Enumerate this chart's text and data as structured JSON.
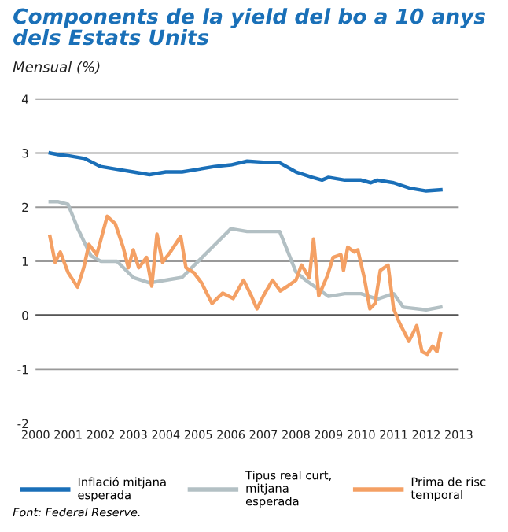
{
  "chart_data": {
    "type": "line",
    "title": "Components de la yield del bo a 10 anys\ndels Estats Units",
    "subtitle": "Mensual (%)",
    "xlim": [
      2000,
      2013
    ],
    "xticks": [
      2000,
      2001,
      2002,
      2003,
      2004,
      2005,
      2006,
      2007,
      2008,
      2009,
      2010,
      2011,
      2012,
      2013
    ],
    "ylim": [
      -2,
      4
    ],
    "yticks": [
      -2,
      -1,
      0,
      1,
      2,
      3,
      4
    ],
    "grid": "y",
    "legend": "bottom",
    "ref_lines": [
      {
        "axis": "y",
        "value": 0,
        "color": "#555555"
      }
    ],
    "annotations": [
      "Font: Federal Reserve."
    ],
    "series": [
      {
        "name": "Inflació mitjana\nesperada",
        "color": "#1a6fb8",
        "x": [
          2000.45,
          2000.7,
          2001.0,
          2001.5,
          2002.0,
          2002.5,
          2003.0,
          2003.5,
          2004.0,
          2004.5,
          2005.0,
          2005.5,
          2006.0,
          2006.5,
          2007.0,
          2007.5,
          2008.0,
          2008.5,
          2008.8,
          2009.0,
          2009.5,
          2010.0,
          2010.3,
          2010.5,
          2011.0,
          2011.5,
          2012.0,
          2012.45
        ],
        "values": [
          3.0,
          2.97,
          2.95,
          2.9,
          2.75,
          2.7,
          2.65,
          2.6,
          2.65,
          2.65,
          2.7,
          2.75,
          2.78,
          2.85,
          2.83,
          2.82,
          2.65,
          2.55,
          2.5,
          2.55,
          2.5,
          2.5,
          2.45,
          2.5,
          2.45,
          2.35,
          2.3,
          2.32
        ]
      },
      {
        "name": "Tipus real curt,\nmitjana\nesperada",
        "color": "#b3c0c4",
        "x": [
          2000.45,
          2000.7,
          2001.0,
          2001.3,
          2001.7,
          2002.0,
          2002.5,
          2003.0,
          2003.5,
          2004.0,
          2004.5,
          2005.0,
          2005.5,
          2006.0,
          2006.5,
          2007.0,
          2007.5,
          2008.0,
          2008.3,
          2009.0,
          2009.5,
          2010.0,
          2010.5,
          2011.0,
          2011.3,
          2012.0,
          2012.45
        ],
        "values": [
          2.1,
          2.1,
          2.05,
          1.6,
          1.1,
          1.0,
          1.0,
          0.7,
          0.6,
          0.65,
          0.7,
          1.0,
          1.3,
          1.6,
          1.55,
          1.55,
          1.55,
          0.8,
          0.65,
          0.35,
          0.4,
          0.4,
          0.3,
          0.4,
          0.15,
          0.1,
          0.15
        ]
      },
      {
        "name": "Prima de risc\ntemporal",
        "color": "#f4a064",
        "x": [
          2000.44,
          2000.6,
          2000.76,
          2001.0,
          2001.29,
          2001.48,
          2001.64,
          2001.88,
          2002.2,
          2002.45,
          2002.69,
          2002.85,
          2003.0,
          2003.17,
          2003.41,
          2003.57,
          2003.73,
          2003.9,
          2004.14,
          2004.46,
          2004.62,
          2004.86,
          2005.1,
          2005.42,
          2005.75,
          2006.07,
          2006.39,
          2006.63,
          2006.8,
          2007.0,
          2007.28,
          2007.52,
          2007.77,
          2008.0,
          2008.17,
          2008.41,
          2008.54,
          2008.7,
          2008.97,
          2009.14,
          2009.38,
          2009.46,
          2009.59,
          2009.79,
          2009.9,
          2010.1,
          2010.27,
          2010.43,
          2010.59,
          2010.83,
          2011.0,
          2011.18,
          2011.47,
          2011.71,
          2011.87,
          2012.03,
          2012.2,
          2012.33,
          2012.44
        ],
        "values": [
          1.46,
          0.98,
          1.17,
          0.79,
          0.52,
          0.88,
          1.31,
          1.12,
          1.83,
          1.69,
          1.26,
          0.88,
          1.21,
          0.88,
          1.07,
          0.54,
          1.5,
          0.98,
          1.17,
          1.46,
          0.88,
          0.79,
          0.6,
          0.22,
          0.41,
          0.31,
          0.65,
          0.36,
          0.12,
          0.36,
          0.65,
          0.45,
          0.55,
          0.65,
          0.93,
          0.69,
          1.41,
          0.36,
          0.74,
          1.07,
          1.12,
          0.83,
          1.26,
          1.17,
          1.21,
          0.69,
          0.12,
          0.22,
          0.83,
          0.93,
          0.12,
          -0.14,
          -0.48,
          -0.19,
          -0.67,
          -0.72,
          -0.57,
          -0.67,
          -0.34
        ]
      }
    ]
  }
}
